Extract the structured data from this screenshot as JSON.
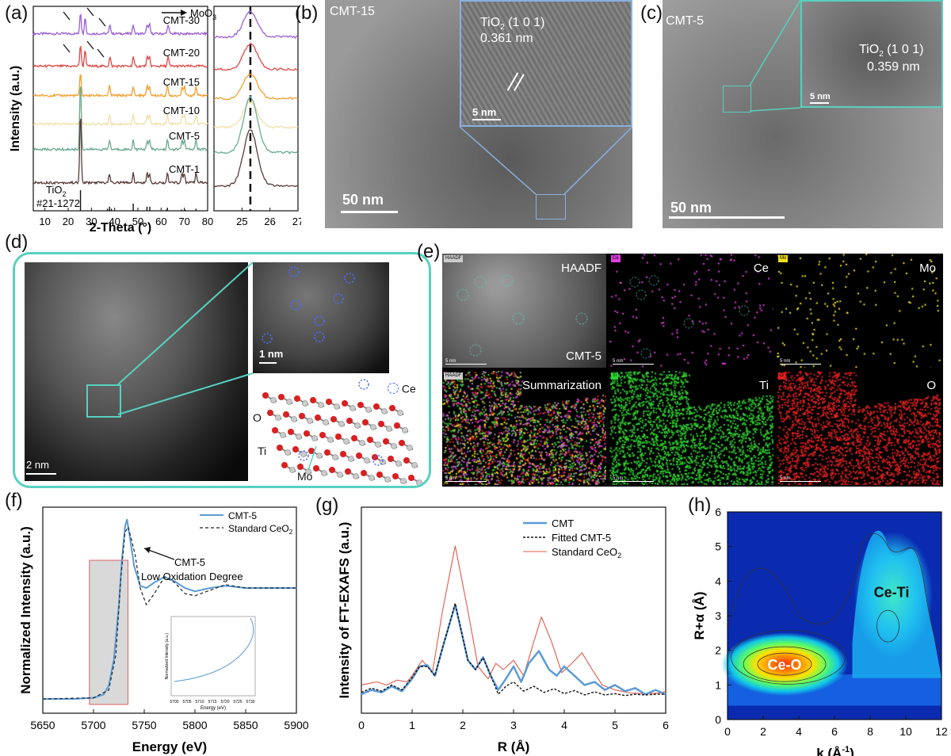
{
  "panels": {
    "a": "(a)",
    "b": "(b)",
    "c": "(c)",
    "d": "(d)",
    "e": "(e)",
    "f": "(f)",
    "g": "(g)",
    "h": "(h)"
  },
  "colors": {
    "cmt30": "#9b5fd4",
    "cmt20": "#e04848",
    "cmt15": "#f0a030",
    "cmt10": "#f0e0a8",
    "cmt5": "#6aaa90",
    "cmt1": "#5a3a3a",
    "teal": "#57d1c0",
    "blue_line": "#5b9bd5",
    "red_line": "#e05a4a"
  },
  "temB": {
    "sample": "CMT-15",
    "inset_text_1": "TiO",
    "inset_sub": "2",
    "inset_text_2": " (1 0 1)",
    "spacing": "0.361 nm",
    "inset_scale": "5 nm",
    "scale": "50 nm"
  },
  "temC": {
    "sample": "CMT-5",
    "inset_text_1": "TiO",
    "inset_sub": "2",
    "inset_text_2": " (1 0 1)",
    "spacing": "0.359 nm",
    "inset_scale": "5 nm",
    "scale": "50 nm"
  },
  "panelD": {
    "scale_main": "2 nm",
    "scale_inset": "1 nm",
    "ce_label": "Ce",
    "o_label": "O",
    "ti_label": "Ti",
    "mo_label": "Mo"
  },
  "panelE": {
    "tiles": [
      {
        "label": "HAADF",
        "sub": "CMT-5",
        "tag": "HAADF"
      },
      {
        "label": "Ce",
        "tag": "Ce"
      },
      {
        "label": "Mo",
        "tag": "Mo"
      },
      {
        "label": "Summarization",
        "tag": "HAADF"
      },
      {
        "label": "Ti",
        "tag": "Ti"
      },
      {
        "label": "O",
        "tag": "O"
      }
    ],
    "scale": "5 nm"
  },
  "chart_data": [
    {
      "panel": "a",
      "type": "line",
      "xlabel": "2-Theta (°)",
      "ylabel": "Intensity (a.u.)",
      "xlim": [
        5,
        80
      ],
      "xticks": [
        "10",
        "20",
        "30",
        "40",
        "50",
        "60",
        "70",
        "80"
      ],
      "legend": "MoO3",
      "legend_main": "MoO",
      "legend_sub": "3",
      "series": [
        {
          "name": "CMT-30",
          "peaks": [
            25.3,
            27.3,
            38,
            48,
            54,
            55,
            63
          ]
        },
        {
          "name": "CMT-20",
          "peaks": [
            25.3,
            27.3,
            38,
            48,
            54,
            55,
            63
          ]
        },
        {
          "name": "CMT-15",
          "peaks": [
            25.3,
            37.8,
            48,
            54,
            55,
            62.7,
            69,
            70,
            75
          ]
        },
        {
          "name": "CMT-10",
          "peaks": [
            25.3,
            37.8,
            48,
            54,
            55,
            62.7,
            69,
            70,
            75
          ]
        },
        {
          "name": "CMT-5",
          "peaks": [
            25.3,
            37.8,
            48,
            54,
            55,
            62.7,
            69,
            70,
            75
          ]
        },
        {
          "name": "CMT-1",
          "peaks": [
            25.3,
            37.8,
            48,
            54,
            55,
            62.7,
            69,
            70,
            75
          ]
        }
      ],
      "reference": {
        "name_main": "TiO",
        "name_sub": "2",
        "card": "#21-1272",
        "sticks": [
          [
            25.3,
            1.0
          ],
          [
            36.9,
            0.1
          ],
          [
            37.8,
            0.2
          ],
          [
            38.6,
            0.1
          ],
          [
            48.0,
            0.35
          ],
          [
            53.9,
            0.2
          ],
          [
            55.1,
            0.2
          ],
          [
            62.1,
            0.05
          ],
          [
            62.7,
            0.15
          ],
          [
            68.8,
            0.06
          ],
          [
            70.3,
            0.06
          ],
          [
            75.0,
            0.1
          ]
        ]
      }
    },
    {
      "panel": "a-zoom",
      "type": "line",
      "xlim": [
        24,
        27
      ],
      "xticks": [
        "25",
        "26",
        "27"
      ],
      "reference_line": 25.3
    },
    {
      "panel": "f",
      "type": "line",
      "xlabel": "Energy (eV)",
      "ylabel": "Normalized Intensity (a.u.)",
      "xlim": [
        5650,
        5900
      ],
      "xticks": [
        "5650",
        "5700",
        "5750",
        "5800",
        "5850",
        "5900"
      ],
      "series": [
        {
          "name": "CMT-5",
          "x": [
            5650,
            5680,
            5700,
            5710,
            5715,
            5720,
            5725,
            5728,
            5731,
            5733,
            5736,
            5740,
            5746,
            5752,
            5760,
            5770,
            5780,
            5790,
            5800,
            5815,
            5830,
            5850,
            5900
          ],
          "y": [
            0.0,
            0.0,
            0.01,
            0.04,
            0.12,
            0.35,
            0.85,
            1.25,
            1.55,
            1.62,
            1.45,
            1.2,
            1.02,
            1.0,
            1.05,
            1.1,
            1.06,
            1.0,
            0.97,
            1.0,
            1.02,
            1.0,
            1.0
          ]
        },
        {
          "name": "Standard CeO2",
          "x": [
            5650,
            5700,
            5715,
            5722,
            5727,
            5731,
            5734,
            5737,
            5741,
            5746,
            5752,
            5760,
            5770,
            5780,
            5790,
            5800,
            5815,
            5830,
            5850,
            5900
          ],
          "y": [
            0.0,
            0.01,
            0.08,
            0.4,
            1.1,
            1.5,
            1.55,
            1.45,
            1.3,
            1.0,
            0.85,
            0.95,
            1.1,
            1.05,
            0.95,
            0.93,
            0.98,
            1.03,
            1.0,
            1.0
          ]
        }
      ],
      "legend": [
        "CMT-5",
        "Standard CeO"
      ],
      "legend_sub": "2",
      "annotation": [
        "CMT-5",
        "Low Oxidation Degree"
      ],
      "inset": {
        "ylabel": "Normalized Intensity (a.u.)",
        "xlabel": "Energy (eV)",
        "xticks": [
          "5700",
          "5705",
          "5710",
          "5715",
          "5720",
          "5725",
          "5730"
        ]
      }
    },
    {
      "panel": "g",
      "type": "line",
      "xlabel": "R (Å)",
      "ylabel": "Intensity of FT-EXAFS (a.u.)",
      "xlim": [
        0,
        6
      ],
      "xticks": [
        "0",
        "1",
        "2",
        "3",
        "4",
        "5",
        "6"
      ],
      "legend": [
        "CMT",
        "Fitted CMT-5",
        "Standard CeO"
      ],
      "legend_sub": "2",
      "series": [
        {
          "name": "CMT",
          "x": [
            0,
            0.2,
            0.4,
            0.6,
            0.8,
            1.0,
            1.15,
            1.3,
            1.45,
            1.6,
            1.85,
            2.1,
            2.25,
            2.4,
            2.55,
            2.7,
            2.85,
            3.0,
            3.15,
            3.3,
            3.5,
            3.7,
            3.85,
            4.0,
            4.2,
            4.4,
            4.6,
            4.8,
            5.0,
            5.2,
            5.4,
            5.6,
            5.8,
            6.0
          ],
          "y": [
            0.05,
            0.12,
            0.08,
            0.18,
            0.1,
            0.3,
            0.5,
            0.52,
            0.35,
            0.8,
            1.5,
            0.6,
            0.45,
            0.65,
            0.35,
            0.12,
            0.3,
            0.5,
            0.25,
            0.55,
            0.75,
            0.45,
            0.35,
            0.5,
            0.35,
            0.2,
            0.25,
            0.12,
            0.2,
            0.1,
            0.15,
            0.05,
            0.12,
            0.05
          ]
        },
        {
          "name": "Fitted CMT-5",
          "x": [
            0,
            0.2,
            0.4,
            0.6,
            0.8,
            1.0,
            1.15,
            1.3,
            1.45,
            1.6,
            1.85,
            2.1,
            2.25,
            2.4,
            2.55,
            2.7,
            2.85,
            3.0,
            3.2,
            3.4,
            3.6,
            3.8,
            4.0,
            4.2,
            4.4,
            4.6,
            4.8,
            5.0,
            5.2,
            5.4,
            5.6,
            5.8,
            6.0
          ],
          "y": [
            0.08,
            0.15,
            0.1,
            0.2,
            0.12,
            0.32,
            0.5,
            0.5,
            0.35,
            0.8,
            1.52,
            0.6,
            0.45,
            0.64,
            0.35,
            0.05,
            0.18,
            0.25,
            0.1,
            0.18,
            0.08,
            0.14,
            0.06,
            0.11,
            0.04,
            0.09,
            0.04,
            0.06,
            0.03,
            0.05,
            0.04,
            0.05,
            0.05
          ]
        },
        {
          "name": "Standard CeO2",
          "x": [
            0,
            0.3,
            0.5,
            0.7,
            0.9,
            1.0,
            1.2,
            1.4,
            1.6,
            1.85,
            2.1,
            2.3,
            2.5,
            2.65,
            2.8,
            3.0,
            3.2,
            3.4,
            3.55,
            3.75,
            3.95,
            4.15,
            4.35,
            4.55,
            4.75,
            5.0,
            5.3,
            5.6,
            5.9,
            6.0
          ],
          "y": [
            0.2,
            0.25,
            0.2,
            0.28,
            0.25,
            0.35,
            0.6,
            0.4,
            1.4,
            2.45,
            1.4,
            0.5,
            0.3,
            0.55,
            0.45,
            0.6,
            0.35,
            0.9,
            1.3,
            0.9,
            0.4,
            0.55,
            0.72,
            0.45,
            0.2,
            0.12,
            0.07,
            0.06,
            0.07,
            0.1
          ]
        }
      ]
    },
    {
      "panel": "h",
      "type": "heatmap",
      "xlabel": "k (Å",
      "xlabel_sup": "-1",
      "xlabel_end": ")",
      "ylabel": "R+α (Å)",
      "xlim": [
        0,
        12
      ],
      "ylim": [
        0,
        6
      ],
      "xticks": [
        "0",
        "2",
        "4",
        "6",
        "8",
        "10",
        "12"
      ],
      "yticks": [
        "0",
        "1",
        "2",
        "3",
        "4",
        "5",
        "6"
      ],
      "peaks": [
        {
          "label": "Ce-O",
          "k": 3.2,
          "r": 1.6
        },
        {
          "label": "Ce-Ti",
          "k": 9.2,
          "r": 3.7
        }
      ]
    }
  ]
}
